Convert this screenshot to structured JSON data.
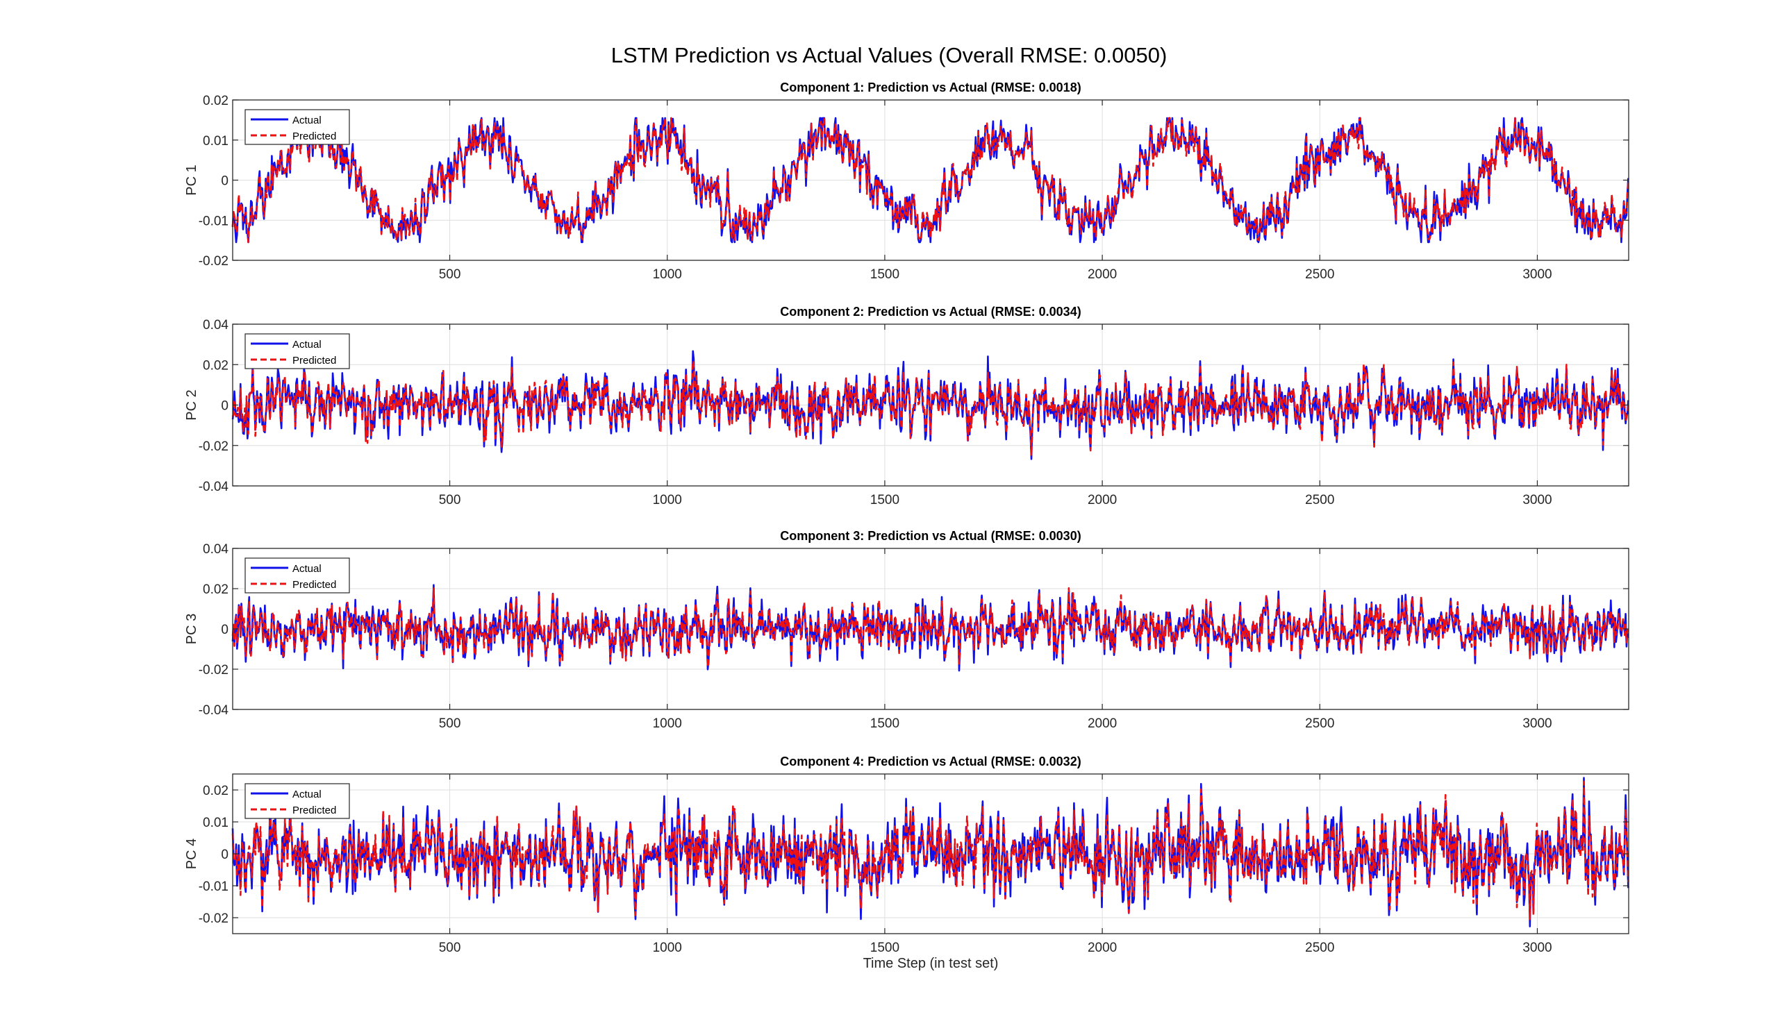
{
  "figure_title": "LSTM Prediction vs Actual Values (Overall RMSE: 0.0050)",
  "x_axis_label": "Time Step (in test set)",
  "colors": {
    "actual": "#1010e8",
    "predicted": "#ee1111",
    "grid": "#dedede",
    "axes": "#262626"
  },
  "chart_data": [
    {
      "type": "line",
      "title": "Component 1: Prediction vs Actual (RMSE: 0.0018)",
      "ylabel": "PC 1",
      "xlim": [
        1,
        3210
      ],
      "ylim": [
        -0.02,
        0.02
      ],
      "x_ticks": [
        500,
        1000,
        1500,
        2000,
        2500,
        3000
      ],
      "y_ticks": [
        -0.02,
        -0.01,
        0,
        0.01,
        0.02
      ],
      "y_tick_labels": [
        "-0.02",
        "-0.01",
        "0",
        "0.01",
        "0.02"
      ],
      "grid": true,
      "legend": {
        "entries": [
          "Actual",
          "Predicted"
        ],
        "location": "top-left"
      },
      "signal": {
        "kind": "sine",
        "amplitude": 0.011,
        "period": 395,
        "phase": 90,
        "noise": 0.0035,
        "seed": 11,
        "clip": 0.0155
      },
      "series": [
        {
          "name": "Actual",
          "style": "solid"
        },
        {
          "name": "Predicted",
          "style": "dashed"
        }
      ]
    },
    {
      "type": "line",
      "title": "Component 2: Prediction vs Actual (RMSE: 0.0034)",
      "ylabel": "PC 2",
      "xlim": [
        1,
        3210
      ],
      "ylim": [
        -0.04,
        0.04
      ],
      "x_ticks": [
        500,
        1000,
        1500,
        2000,
        2500,
        3000
      ],
      "y_ticks": [
        -0.04,
        -0.02,
        0,
        0.02,
        0.04
      ],
      "y_tick_labels": [
        "-0.04",
        "-0.02",
        "0",
        "0.02",
        "0.04"
      ],
      "grid": true,
      "legend": {
        "entries": [
          "Actual",
          "Predicted"
        ],
        "location": "top-left"
      },
      "signal": {
        "kind": "noise",
        "amplitude": 0.0,
        "period": 1,
        "phase": 0,
        "noise": 0.0085,
        "seed": 23,
        "clip": 0.031
      },
      "series": [
        {
          "name": "Actual",
          "style": "solid"
        },
        {
          "name": "Predicted",
          "style": "dashed"
        }
      ]
    },
    {
      "type": "line",
      "title": "Component 3: Prediction vs Actual (RMSE: 0.0030)",
      "ylabel": "PC 3",
      "xlim": [
        1,
        3210
      ],
      "ylim": [
        -0.04,
        0.04
      ],
      "x_ticks": [
        500,
        1000,
        1500,
        2000,
        2500,
        3000
      ],
      "y_ticks": [
        -0.04,
        -0.02,
        0,
        0.02,
        0.04
      ],
      "y_tick_labels": [
        "-0.04",
        "-0.02",
        "0",
        "0.02",
        "0.04"
      ],
      "grid": true,
      "legend": {
        "entries": [
          "Actual",
          "Predicted"
        ],
        "location": "top-left"
      },
      "signal": {
        "kind": "noise",
        "amplitude": 0.0,
        "period": 1,
        "phase": 0,
        "noise": 0.0075,
        "seed": 37,
        "clip": 0.029
      },
      "series": [
        {
          "name": "Actual",
          "style": "solid"
        },
        {
          "name": "Predicted",
          "style": "dashed"
        }
      ]
    },
    {
      "type": "line",
      "title": "Component 4: Prediction vs Actual (RMSE: 0.0032)",
      "ylabel": "PC 4",
      "xlim": [
        1,
        3210
      ],
      "ylim": [
        -0.025,
        0.025
      ],
      "x_ticks": [
        500,
        1000,
        1500,
        2000,
        2500,
        3000
      ],
      "y_ticks": [
        -0.02,
        -0.01,
        0,
        0.01,
        0.02
      ],
      "y_tick_labels": [
        "-0.02",
        "-0.01",
        "0",
        "0.01",
        "0.02"
      ],
      "grid": true,
      "legend": {
        "entries": [
          "Actual",
          "Predicted"
        ],
        "location": "top-left"
      },
      "signal": {
        "kind": "noise",
        "amplitude": 0.003,
        "period": 380,
        "phase": 0,
        "noise": 0.0075,
        "seed": 53,
        "clip": 0.0245
      },
      "series": [
        {
          "name": "Actual",
          "style": "solid"
        },
        {
          "name": "Predicted",
          "style": "dashed"
        }
      ]
    }
  ]
}
